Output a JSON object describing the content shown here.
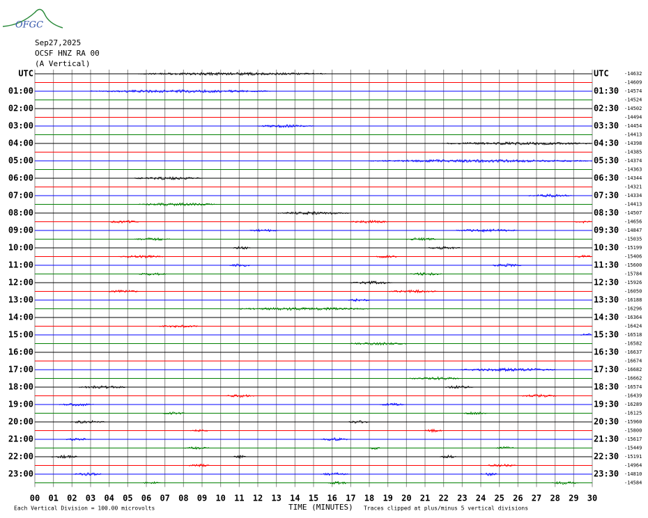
{
  "logo": "OFGC",
  "header": {
    "date": "Sep27,2025",
    "station": "OCSF HNZ RA 00",
    "component": "(A Vertical)"
  },
  "chart_data": {
    "type": "helicorder",
    "xlabel": "TIME (MINUTES)",
    "scale_note": "Each Vertical Division =  100.00 microvolts",
    "clip_note": "Traces clipped at plus/minus 5 vertical divisions",
    "xlim": [
      0,
      30
    ],
    "xticks": [
      {
        "value": 0,
        "label": "00"
      },
      {
        "value": 1,
        "label": "01"
      },
      {
        "value": 2,
        "label": "02"
      },
      {
        "value": 3,
        "label": "03"
      },
      {
        "value": 4,
        "label": "04"
      },
      {
        "value": 5,
        "label": "05"
      },
      {
        "value": 6,
        "label": "06"
      },
      {
        "value": 7,
        "label": "07"
      },
      {
        "value": 8,
        "label": "08"
      },
      {
        "value": 9,
        "label": "09"
      },
      10,
      11,
      12,
      13,
      14,
      15,
      16,
      17,
      18,
      19,
      20,
      21,
      22,
      23,
      24,
      25,
      26,
      27,
      28,
      29,
      30
    ],
    "row_labels_left": [
      "UTC",
      "01:00",
      "02:00",
      "03:00",
      "04:00",
      "05:00",
      "06:00",
      "07:00",
      "08:00",
      "09:00",
      "10:00",
      "11:00",
      "12:00",
      "13:00",
      "14:00",
      "15:00",
      "16:00",
      "17:00",
      "18:00",
      "19:00",
      "20:00",
      "21:00",
      "22:00",
      "23:00"
    ],
    "row_labels_right": [
      "UTC",
      "01:30",
      "02:30",
      "03:30",
      "04:30",
      "05:30",
      "06:30",
      "07:30",
      "08:30",
      "09:30",
      "10:30",
      "11:30",
      "12:30",
      "13:30",
      "14:30",
      "15:30",
      "16:30",
      "17:30",
      "18:30",
      "19:30",
      "20:30",
      "21:30",
      "22:30",
      "23:30"
    ],
    "trace_offsets": [
      -14632,
      -14609,
      -14574,
      -14524,
      -14502,
      -14494,
      -14454,
      -14413,
      -14398,
      -14385,
      -14374,
      -14363,
      -14344,
      -14321,
      -14334,
      -14413,
      -14507,
      -14656,
      -14847,
      -15035,
      -15199,
      -15406,
      -15600,
      -15784,
      -15926,
      -16050,
      -16188,
      -16296,
      -16364,
      -16424,
      -16518,
      -16582,
      -16637,
      -16674,
      -16682,
      -16662,
      -16574,
      -16439,
      -16289,
      -16125,
      -15960,
      -15800,
      -15617,
      -15449,
      -15191,
      -14964,
      -14810,
      -14584
    ],
    "trace_colors": [
      "#000000",
      "#ff0000",
      "#0000ff",
      "#008000"
    ],
    "grid_color": "#888888",
    "bursts": [
      [
        [
          5.6,
          15.7
        ]
      ],
      [],
      [
        [
          3,
          12.7
        ]
      ],
      [],
      [],
      [],
      [
        [
          12,
          15
        ]
      ],
      [],
      [
        [
          21.9,
          30
        ]
      ],
      [],
      [
        [
          18,
          30
        ]
      ],
      [],
      [
        [
          5.4,
          9
        ]
      ],
      [],
      [
        [
          26.6,
          28.9
        ]
      ],
      [
        [
          5.6,
          9.8
        ]
      ],
      [
        [
          13.1,
          16.9
        ]
      ],
      [
        [
          3.9,
          5.6
        ],
        [
          17,
          19.1
        ],
        [
          29,
          30
        ]
      ],
      [
        [
          11.6,
          13.1
        ],
        [
          22.7,
          26
        ]
      ],
      [
        [
          5.4,
          7.3
        ],
        [
          20,
          21.6
        ]
      ],
      [
        [
          10.7,
          11.6
        ],
        [
          21.2,
          22.9
        ]
      ],
      [
        [
          4.5,
          6.9
        ],
        [
          18.4,
          19.5
        ],
        [
          29,
          30
        ]
      ],
      [
        [
          10.5,
          11.6
        ],
        [
          24.6,
          26.2
        ]
      ],
      [
        [
          5.6,
          7.1
        ],
        [
          20.2,
          21.9
        ]
      ],
      [
        [
          17,
          19.3
        ]
      ],
      [
        [
          4,
          5.6
        ],
        [
          19.1,
          21.7
        ]
      ],
      [
        [
          16.9,
          18
        ]
      ],
      [
        [
          10.9,
          18
        ]
      ],
      [],
      [
        [
          6.7,
          8.8
        ]
      ],
      [
        [
          29.4,
          30
        ]
      ],
      [
        [
          17,
          20
        ]
      ],
      [],
      [],
      [
        [
          22.9,
          28.1
        ]
      ],
      [
        [
          20.2,
          22.9
        ]
      ],
      [
        [
          2.4,
          4.9
        ],
        [
          22.1,
          23.6
        ]
      ],
      [
        [
          10.3,
          11.8
        ],
        [
          26.2,
          28.1
        ]
      ],
      [
        [
          1.3,
          3.2
        ],
        [
          18.6,
          19.9
        ]
      ],
      [
        [
          6.9,
          8.1
        ],
        [
          23.1,
          24.4
        ]
      ],
      [
        [
          1.9,
          3.8
        ],
        [
          16.9,
          18
        ]
      ],
      [
        [
          8.4,
          9.4
        ],
        [
          21,
          21.9
        ]
      ],
      [
        [
          1.7,
          3
        ],
        [
          15.4,
          16.9
        ]
      ],
      [
        [
          8.1,
          9.4
        ],
        [
          18,
          18.6
        ],
        [
          24.8,
          25.9
        ]
      ],
      [
        [
          0.9,
          2.3
        ],
        [
          10.7,
          11.4
        ],
        [
          21.8,
          22.7
        ]
      ],
      [
        [
          8.3,
          9.4
        ],
        [
          24.4,
          25.9
        ]
      ],
      [
        [
          2.1,
          3.6
        ],
        [
          15.4,
          16.9
        ],
        [
          24,
          24.9
        ]
      ],
      [
        [
          5.8,
          6.8
        ],
        [
          15.8,
          16.9
        ],
        [
          27.8,
          29.3
        ]
      ]
    ]
  }
}
